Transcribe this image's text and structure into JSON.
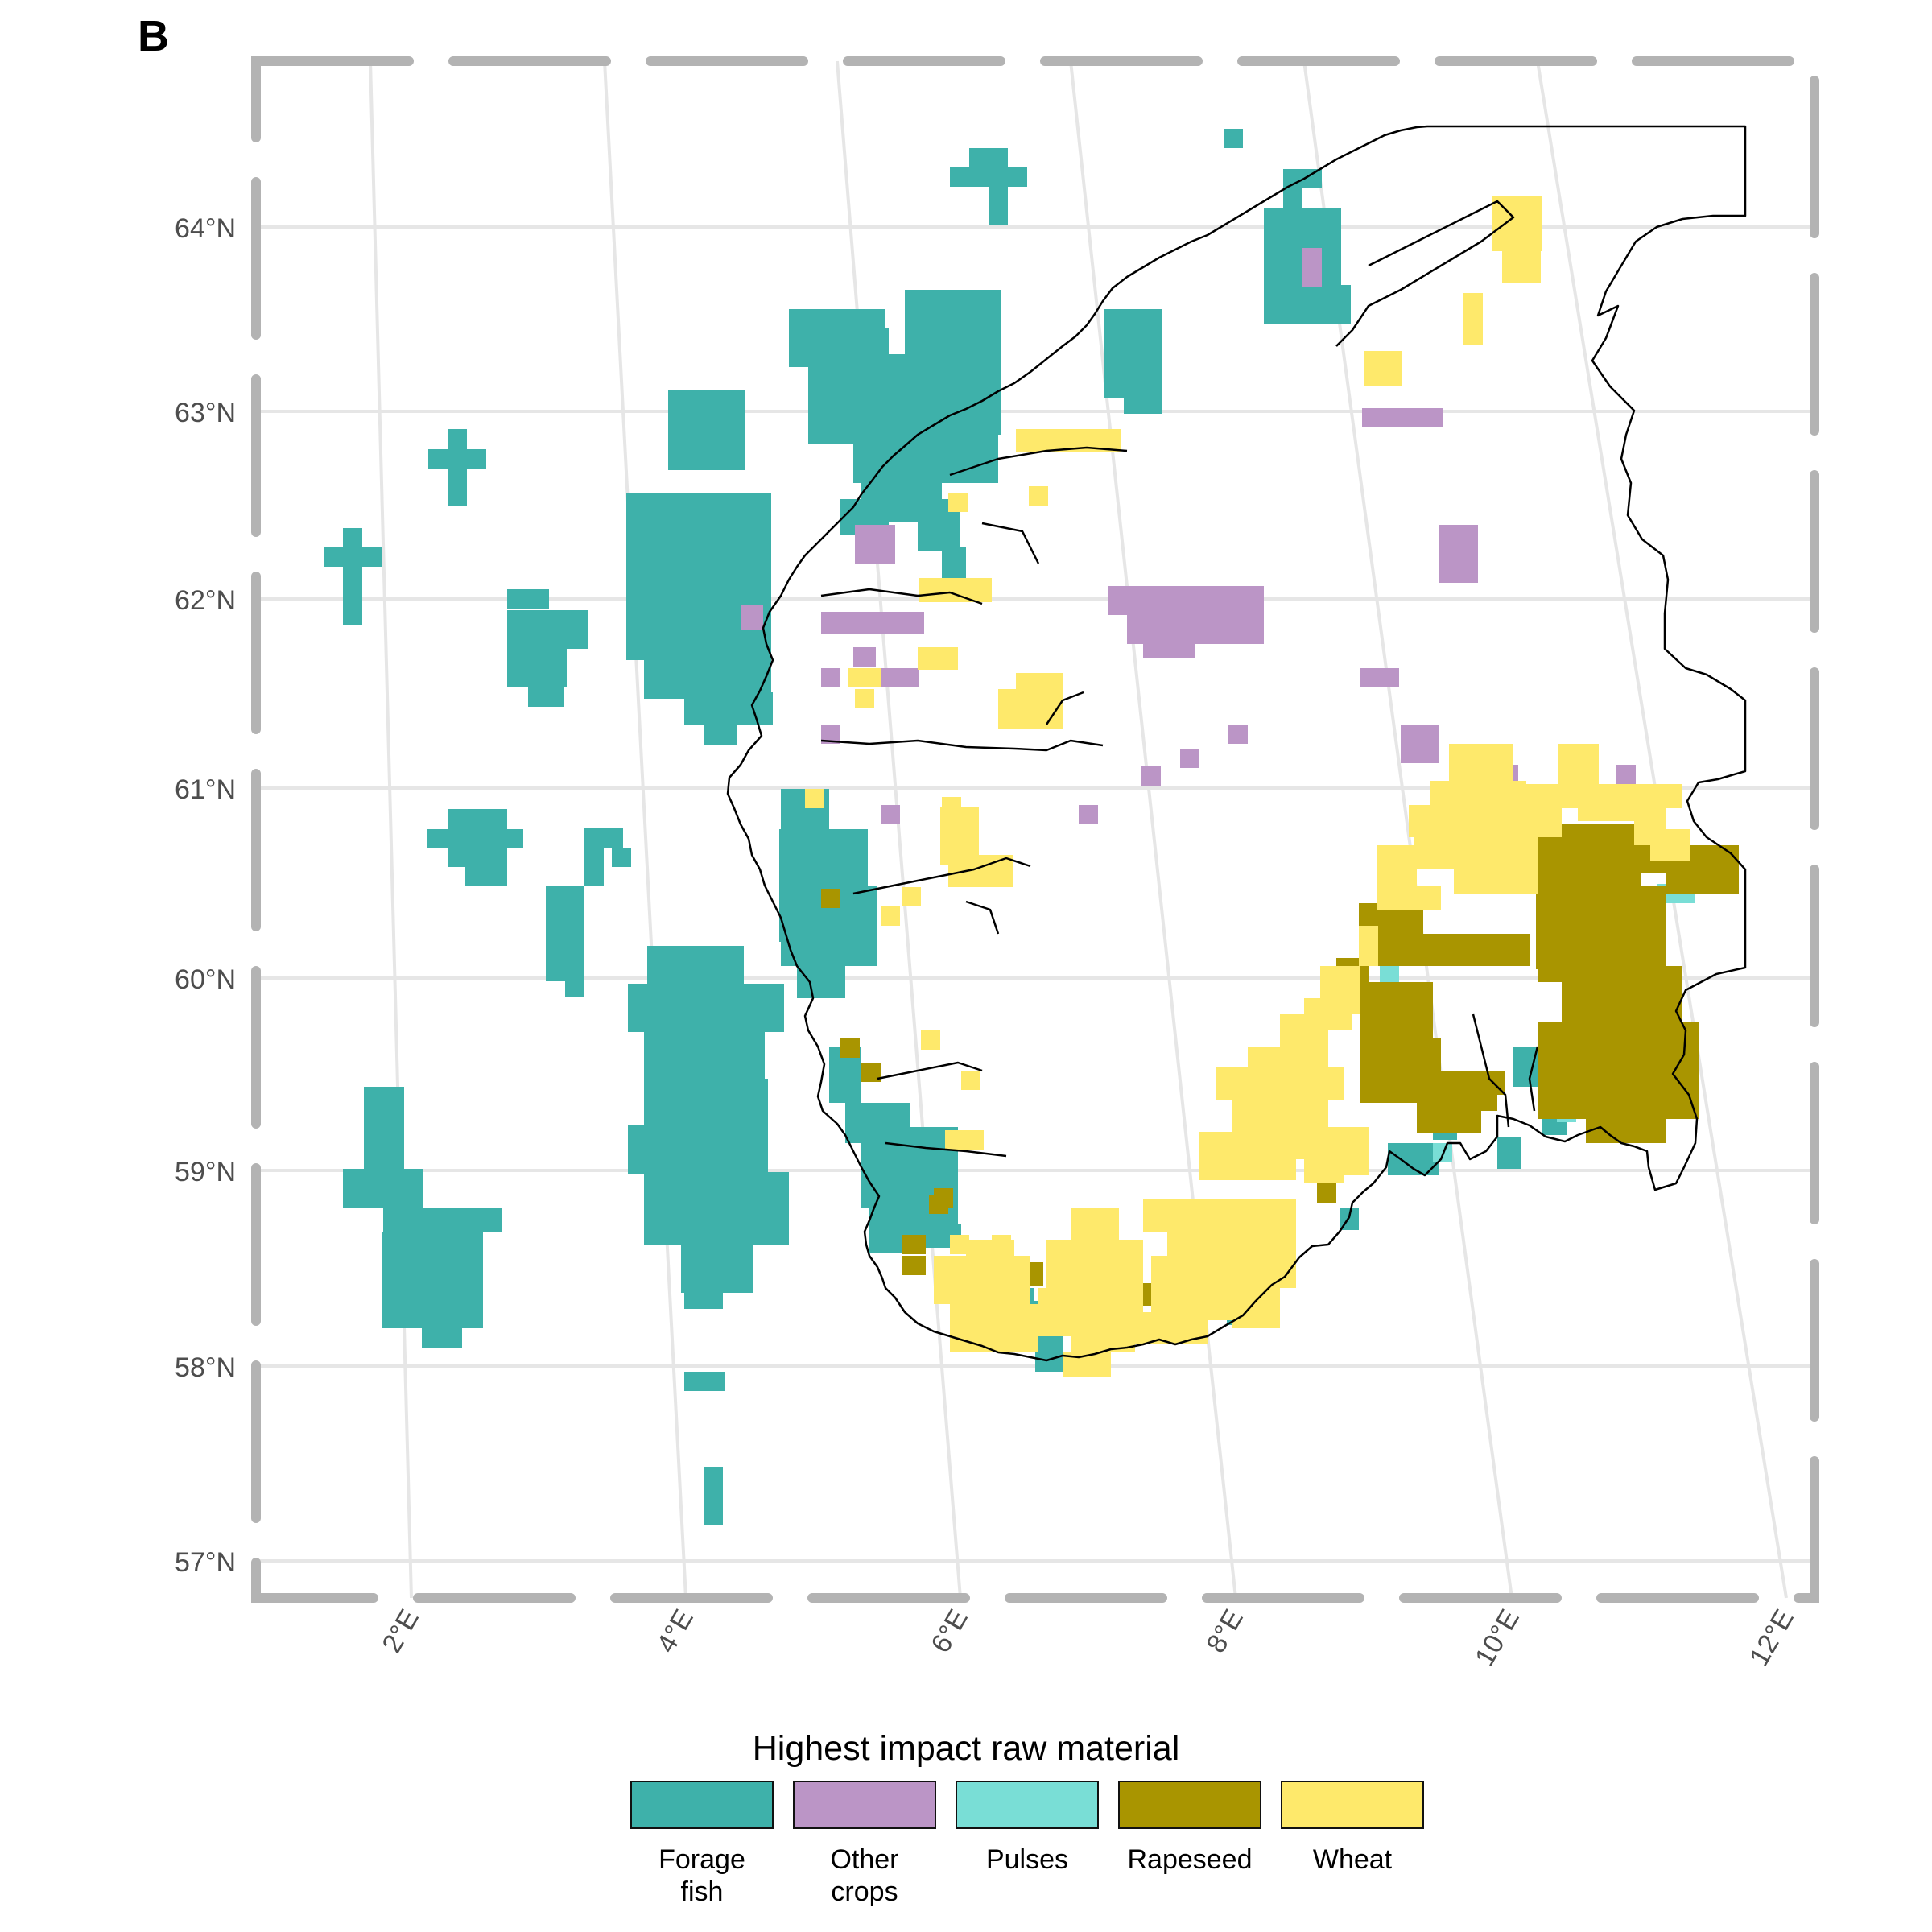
{
  "panel_label": "B",
  "colors": {
    "forage_fish": "#3EB1AA",
    "other_crops": "#BB95C6",
    "pulses": "#79DED6",
    "rapeseed": "#A99500",
    "wheat": "#FEE96B",
    "grid": "#e6e6e6",
    "frame": "#b3b3b3",
    "coast": "#000000",
    "axis_text": "#4d4d4d"
  },
  "axes": {
    "lat_labels": [
      "57°N",
      "58°N",
      "59°N",
      "60°N",
      "61°N",
      "62°N",
      "63°N",
      "64°N"
    ],
    "lon_labels": [
      "2°E",
      "4°E",
      "6°E",
      "8°E",
      "10°E",
      "12°E"
    ]
  },
  "legend": {
    "title": "Highest impact raw material",
    "items": [
      {
        "key": "forage_fish",
        "label": "Forage\nfish"
      },
      {
        "key": "other_crops",
        "label": "Other\ncrops"
      },
      {
        "key": "pulses",
        "label": "Pulses"
      },
      {
        "key": "rapeseed",
        "label": "Rapeseed"
      },
      {
        "key": "wheat",
        "label": "Wheat"
      }
    ]
  },
  "chart_data": {
    "type": "heatmap",
    "x_range_lon": [
      1.0,
      12.2
    ],
    "y_range_lat": [
      56.8,
      64.6
    ],
    "categories": [
      "Forage fish",
      "Other crops",
      "Pulses",
      "Rapeseed",
      "Wheat"
    ],
    "cells": [
      {
        "category": "Forage fish",
        "lon": 8.6,
        "lat": 63.5
      },
      {
        "category": "Forage fish",
        "lon": 8.5,
        "lat": 64.0
      },
      {
        "category": "Forage fish",
        "lon": 8.1,
        "lat": 64.4
      },
      {
        "category": "Forage fish",
        "lon": 6.3,
        "lat": 64.2
      },
      {
        "category": "Forage fish",
        "lon": 5.7,
        "lat": 63.3
      },
      {
        "category": "Forage fish",
        "lon": 6.0,
        "lat": 62.8
      },
      {
        "category": "Forage fish",
        "lon": 7.2,
        "lat": 63.2
      },
      {
        "category": "Forage fish",
        "lon": 4.2,
        "lat": 62.2
      },
      {
        "category": "Forage fish",
        "lon": 2.5,
        "lat": 62.8
      },
      {
        "category": "Forage fish",
        "lon": 1.6,
        "lat": 62.1
      },
      {
        "category": "Forage fish",
        "lon": 3.0,
        "lat": 61.8
      },
      {
        "category": "Forage fish",
        "lon": 2.4,
        "lat": 60.7
      },
      {
        "category": "Forage fish",
        "lon": 3.5,
        "lat": 60.7
      },
      {
        "category": "Forage fish",
        "lon": 3.1,
        "lat": 60.2
      },
      {
        "category": "Forage fish",
        "lon": 4.3,
        "lat": 59.4
      },
      {
        "category": "Forage fish",
        "lon": 2.0,
        "lat": 58.6
      },
      {
        "category": "Forage fish",
        "lon": 4.2,
        "lat": 57.3
      },
      {
        "category": "Forage fish",
        "lon": 5.2,
        "lat": 60.5
      },
      {
        "category": "Forage fish",
        "lon": 5.6,
        "lat": 59.2
      },
      {
        "category": "Forage fish",
        "lon": 6.7,
        "lat": 58.1
      },
      {
        "category": "Other crops",
        "lon": 7.7,
        "lat": 61.8
      },
      {
        "category": "Other crops",
        "lon": 5.4,
        "lat": 62.0
      },
      {
        "category": "Other crops",
        "lon": 9.8,
        "lat": 62.2
      },
      {
        "category": "Other crops",
        "lon": 9.3,
        "lat": 63.0
      },
      {
        "category": "Other crops",
        "lon": 9.5,
        "lat": 61.2
      },
      {
        "category": "Pulses",
        "lon": 9.8,
        "lat": 60.5
      },
      {
        "category": "Pulses",
        "lon": 11.3,
        "lat": 60.4
      },
      {
        "category": "Pulses",
        "lon": 9.3,
        "lat": 59.5
      },
      {
        "category": "Rapeseed",
        "lon": 10.9,
        "lat": 60.1
      },
      {
        "category": "Rapeseed",
        "lon": 9.3,
        "lat": 59.7
      },
      {
        "category": "Rapeseed",
        "lon": 7.3,
        "lat": 58.2
      },
      {
        "category": "Rapeseed",
        "lon": 5.5,
        "lat": 59.5
      },
      {
        "category": "Wheat",
        "lon": 10.4,
        "lat": 60.8
      },
      {
        "category": "Wheat",
        "lon": 8.6,
        "lat": 59.2
      },
      {
        "category": "Wheat",
        "lon": 7.5,
        "lat": 58.4
      },
      {
        "category": "Wheat",
        "lon": 10.1,
        "lat": 63.9
      },
      {
        "category": "Wheat",
        "lon": 6.2,
        "lat": 60.7
      },
      {
        "category": "Wheat",
        "lon": 6.8,
        "lat": 61.3
      },
      {
        "category": "Wheat",
        "lon": 6.8,
        "lat": 62.8
      }
    ]
  }
}
